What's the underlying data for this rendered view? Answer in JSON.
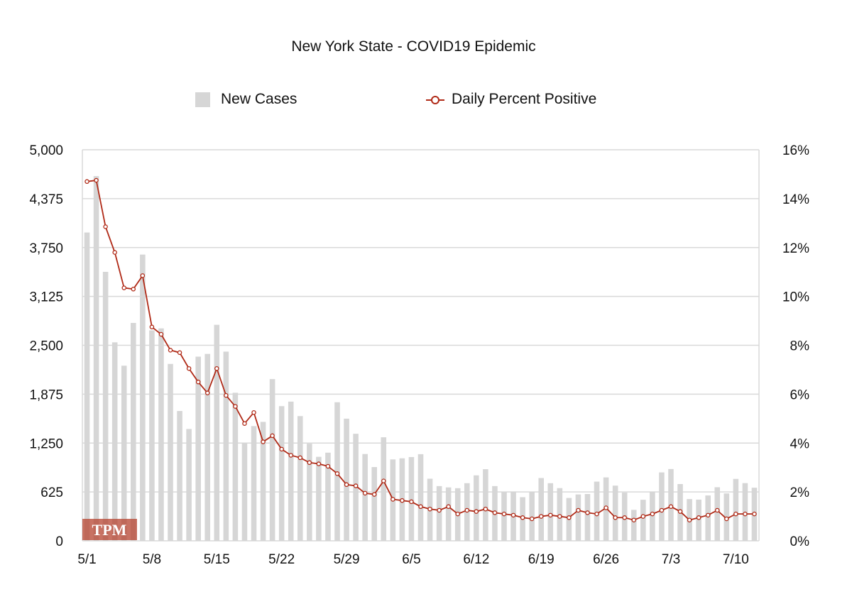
{
  "chart_data": {
    "type": "bar+line",
    "title": "New York State - COVID19 Epidemic",
    "legend": [
      {
        "name": "New Cases",
        "kind": "bar",
        "color": "#d6d6d6"
      },
      {
        "name": "Daily Percent Positive",
        "kind": "line",
        "color": "#b02a17"
      }
    ],
    "legend_position": "top-center",
    "x_tick_labels": [
      "5/1",
      "5/8",
      "5/15",
      "5/22",
      "5/29",
      "6/5",
      "6/12",
      "6/19",
      "6/26",
      "7/3",
      "7/10"
    ],
    "x_tick_days": [
      0,
      7,
      14,
      21,
      28,
      35,
      42,
      49,
      56,
      63,
      70
    ],
    "y_left": {
      "min": 0,
      "max": 5000,
      "tick_labels": [
        "0",
        "625",
        "1,250",
        "1,875",
        "2,500",
        "3,125",
        "3,750",
        "4,375",
        "5,000"
      ]
    },
    "y_right": {
      "min": 0,
      "max": 16,
      "tick_labels": [
        "0%",
        "2%",
        "4%",
        "6%",
        "8%",
        "10%",
        "12%",
        "14%",
        "16%"
      ]
    },
    "grid": true,
    "series": [
      {
        "name": "New Cases",
        "type": "bar",
        "axis": "left",
        "values": [
          3942,
          4663,
          3439,
          2538,
          2239,
          2786,
          3660,
          2691,
          2716,
          2262,
          1660,
          1430,
          2355,
          2390,
          2762,
          2419,
          1893,
          1252,
          1467,
          1521,
          2068,
          1722,
          1780,
          1595,
          1242,
          1074,
          1127,
          1772,
          1562,
          1369,
          1110,
          943,
          1324,
          1041,
          1055,
          1071,
          1108,
          794,
          700,
          683,
          673,
          737,
          837,
          916,
          700,
          622,
          631,
          558,
          630,
          803,
          737,
          674,
          548,
          593,
          599,
          757,
          811,
          706,
          616,
          396,
          525,
          631,
          875,
          918,
          726,
          534,
          527,
          580,
          685,
          606,
          792,
          738,
          679
        ]
      },
      {
        "name": "Daily Percent Positive",
        "type": "line",
        "axis": "right",
        "values": [
          14.7,
          14.75,
          12.85,
          11.8,
          10.35,
          10.3,
          10.85,
          8.75,
          8.45,
          7.8,
          7.7,
          7.05,
          6.5,
          6.05,
          7.05,
          5.95,
          5.5,
          4.8,
          5.25,
          4.05,
          4.3,
          3.75,
          3.5,
          3.4,
          3.2,
          3.15,
          3.05,
          2.75,
          2.3,
          2.25,
          1.95,
          1.9,
          2.45,
          1.7,
          1.65,
          1.6,
          1.4,
          1.3,
          1.25,
          1.4,
          1.1,
          1.25,
          1.2,
          1.3,
          1.15,
          1.1,
          1.05,
          0.95,
          0.9,
          1.0,
          1.05,
          1.0,
          0.95,
          1.25,
          1.15,
          1.1,
          1.35,
          0.95,
          0.95,
          0.85,
          1.0,
          1.1,
          1.25,
          1.4,
          1.2,
          0.85,
          0.95,
          1.05,
          1.25,
          0.9,
          1.1,
          1.1,
          1.1
        ]
      }
    ],
    "watermark": "TPM"
  }
}
